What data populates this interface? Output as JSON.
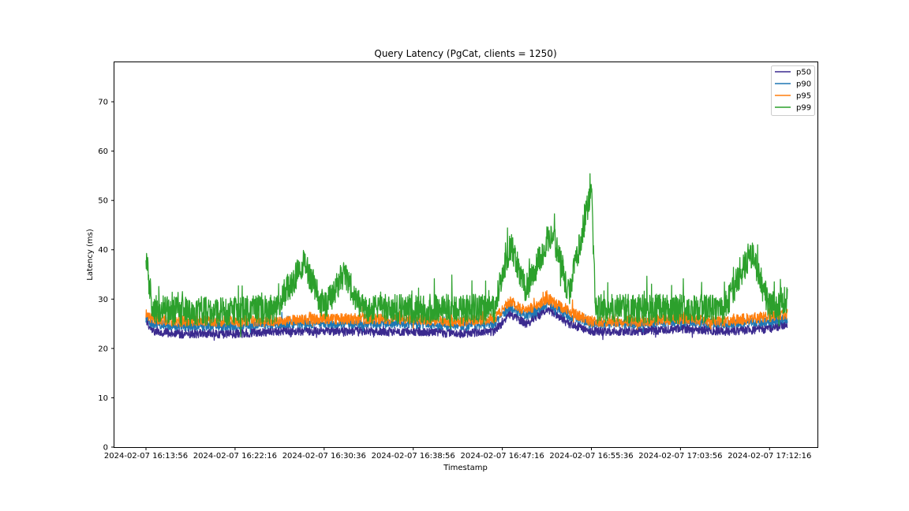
{
  "chart_data": {
    "type": "line",
    "title": "Query Latency (PgCat, clients = 1250)",
    "xlabel": "Timestamp",
    "ylabel": "Latency (ms)",
    "ylim": [
      0,
      78
    ],
    "yticks": [
      0,
      10,
      20,
      30,
      40,
      50,
      60,
      70
    ],
    "x_ticks": [
      "2024-02-07 16:13:56",
      "2024-02-07 16:22:16",
      "2024-02-07 16:30:36",
      "2024-02-07 16:38:56",
      "2024-02-07 16:47:16",
      "2024-02-07 16:55:36",
      "2024-02-07 17:03:56",
      "2024-02-07 17:12:16"
    ],
    "x_range": [
      "2024-02-07 16:13:56",
      "2024-02-07 17:13:56"
    ],
    "legend_position": "top-right",
    "grid": false,
    "series": [
      {
        "name": "p50",
        "color": "#3b2a8f",
        "points": [
          [
            "2024-02-07 16:13:56",
            26
          ],
          [
            "2024-02-07 16:14:30",
            23.5
          ],
          [
            "2024-02-07 16:17:00",
            23
          ],
          [
            "2024-02-07 16:22:16",
            23
          ],
          [
            "2024-02-07 16:26:00",
            23.5
          ],
          [
            "2024-02-07 16:30:36",
            23.5
          ],
          [
            "2024-02-07 16:34:00",
            23.5
          ],
          [
            "2024-02-07 16:38:56",
            23.5
          ],
          [
            "2024-02-07 16:43:00",
            23
          ],
          [
            "2024-02-07 16:46:30",
            23.5
          ],
          [
            "2024-02-07 16:48:00",
            27
          ],
          [
            "2024-02-07 16:49:30",
            25
          ],
          [
            "2024-02-07 16:51:30",
            28
          ],
          [
            "2024-02-07 16:53:30",
            25
          ],
          [
            "2024-02-07 16:55:36",
            23.5
          ],
          [
            "2024-02-07 17:00:00",
            23.5
          ],
          [
            "2024-02-07 17:03:56",
            24
          ],
          [
            "2024-02-07 17:08:00",
            23.5
          ],
          [
            "2024-02-07 17:12:16",
            24
          ],
          [
            "2024-02-07 17:13:56",
            25
          ]
        ]
      },
      {
        "name": "p90",
        "color": "#1f77b4",
        "points": [
          [
            "2024-02-07 16:13:56",
            26
          ],
          [
            "2024-02-07 16:14:30",
            25
          ],
          [
            "2024-02-07 16:17:00",
            24.5
          ],
          [
            "2024-02-07 16:22:16",
            24.5
          ],
          [
            "2024-02-07 16:26:00",
            25
          ],
          [
            "2024-02-07 16:30:36",
            25
          ],
          [
            "2024-02-07 16:34:00",
            25
          ],
          [
            "2024-02-07 16:38:56",
            25
          ],
          [
            "2024-02-07 16:43:00",
            24.5
          ],
          [
            "2024-02-07 16:46:30",
            25
          ],
          [
            "2024-02-07 16:48:00",
            28.5
          ],
          [
            "2024-02-07 16:49:30",
            26.5
          ],
          [
            "2024-02-07 16:51:30",
            29
          ],
          [
            "2024-02-07 16:53:30",
            26.5
          ],
          [
            "2024-02-07 16:55:36",
            25
          ],
          [
            "2024-02-07 17:00:00",
            25
          ],
          [
            "2024-02-07 17:03:56",
            25.5
          ],
          [
            "2024-02-07 17:08:00",
            25
          ],
          [
            "2024-02-07 17:12:16",
            25.5
          ],
          [
            "2024-02-07 17:13:56",
            26
          ]
        ]
      },
      {
        "name": "p95",
        "color": "#ff7f0e",
        "points": [
          [
            "2024-02-07 16:13:56",
            27
          ],
          [
            "2024-02-07 16:14:30",
            26
          ],
          [
            "2024-02-07 16:17:00",
            25.5
          ],
          [
            "2024-02-07 16:22:16",
            25.5
          ],
          [
            "2024-02-07 16:26:00",
            25.5
          ],
          [
            "2024-02-07 16:30:36",
            26
          ],
          [
            "2024-02-07 16:34:00",
            26
          ],
          [
            "2024-02-07 16:38:56",
            26
          ],
          [
            "2024-02-07 16:43:00",
            25.5
          ],
          [
            "2024-02-07 16:46:30",
            26
          ],
          [
            "2024-02-07 16:48:00",
            29.5
          ],
          [
            "2024-02-07 16:49:30",
            27.5
          ],
          [
            "2024-02-07 16:51:30",
            30
          ],
          [
            "2024-02-07 16:53:30",
            27.5
          ],
          [
            "2024-02-07 16:55:36",
            25.5
          ],
          [
            "2024-02-07 17:00:00",
            25.5
          ],
          [
            "2024-02-07 17:03:56",
            26
          ],
          [
            "2024-02-07 17:08:00",
            25.5
          ],
          [
            "2024-02-07 17:12:16",
            26.5
          ],
          [
            "2024-02-07 17:13:56",
            27
          ]
        ]
      },
      {
        "name": "p99",
        "color": "#2ca02c",
        "points": [
          [
            "2024-02-07 16:13:56",
            39.5
          ],
          [
            "2024-02-07 16:14:30",
            28
          ],
          [
            "2024-02-07 16:17:00",
            27.5
          ],
          [
            "2024-02-07 16:22:16",
            27.5
          ],
          [
            "2024-02-07 16:26:00",
            28
          ],
          [
            "2024-02-07 16:28:45",
            37.5
          ],
          [
            "2024-02-07 16:30:36",
            28
          ],
          [
            "2024-02-07 16:32:30",
            35.5
          ],
          [
            "2024-02-07 16:34:00",
            28
          ],
          [
            "2024-02-07 16:38:56",
            28
          ],
          [
            "2024-02-07 16:43:00",
            28
          ],
          [
            "2024-02-07 16:46:30",
            28
          ],
          [
            "2024-02-07 16:48:00",
            41
          ],
          [
            "2024-02-07 16:49:30",
            32
          ],
          [
            "2024-02-07 16:51:30",
            42
          ],
          [
            "2024-02-07 16:52:00",
            43.5
          ],
          [
            "2024-02-07 16:53:30",
            31
          ],
          [
            "2024-02-07 16:55:36",
            52.5
          ],
          [
            "2024-02-07 16:56:00",
            28
          ],
          [
            "2024-02-07 17:00:00",
            28
          ],
          [
            "2024-02-07 17:03:56",
            28
          ],
          [
            "2024-02-07 17:08:00",
            28
          ],
          [
            "2024-02-07 17:10:30",
            39.5
          ],
          [
            "2024-02-07 17:12:16",
            28.5
          ],
          [
            "2024-02-07 17:13:56",
            30
          ]
        ]
      }
    ]
  }
}
